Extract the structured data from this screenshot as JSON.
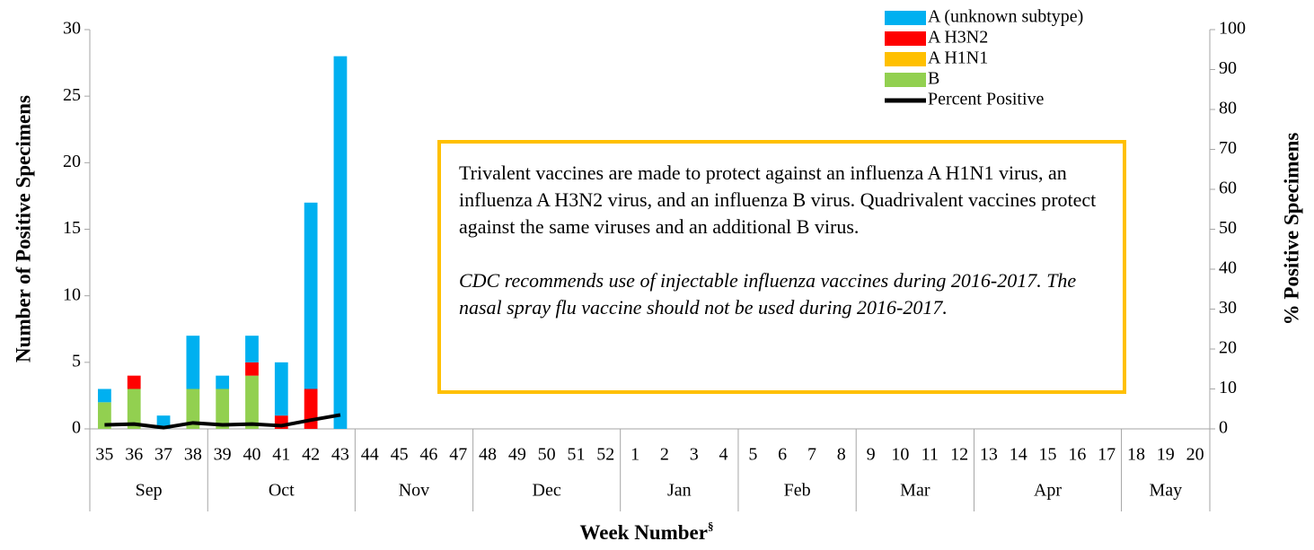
{
  "chart_data": {
    "type": "bar",
    "categories": [
      "35",
      "36",
      "37",
      "38",
      "39",
      "40",
      "41",
      "42",
      "43",
      "44",
      "45",
      "46",
      "47",
      "48",
      "49",
      "50",
      "51",
      "52",
      "1",
      "2",
      "3",
      "4",
      "5",
      "6",
      "7",
      "8",
      "9",
      "10",
      "11",
      "12",
      "13",
      "14",
      "15",
      "16",
      "17",
      "18",
      "19",
      "20"
    ],
    "groups": [
      {
        "label": "Sep",
        "count": 4
      },
      {
        "label": "Oct",
        "count": 5
      },
      {
        "label": "Nov",
        "count": 4
      },
      {
        "label": "Dec",
        "count": 5
      },
      {
        "label": "Jan",
        "count": 4
      },
      {
        "label": "Feb",
        "count": 4
      },
      {
        "label": "Mar",
        "count": 4
      },
      {
        "label": "Apr",
        "count": 5
      },
      {
        "label": "May",
        "count": 3
      }
    ],
    "series": [
      {
        "name": "B",
        "color": "#92d050",
        "values": [
          2,
          3,
          0,
          3,
          3,
          4,
          0,
          0,
          0,
          null,
          null,
          null,
          null,
          null,
          null,
          null,
          null,
          null,
          null,
          null,
          null,
          null,
          null,
          null,
          null,
          null,
          null,
          null,
          null,
          null,
          null,
          null,
          null,
          null,
          null,
          null,
          null,
          null
        ]
      },
      {
        "name": "A H1N1",
        "color": "#ffc000",
        "values": [
          0,
          0,
          0,
          0,
          0,
          0,
          0,
          0,
          0,
          null,
          null,
          null,
          null,
          null,
          null,
          null,
          null,
          null,
          null,
          null,
          null,
          null,
          null,
          null,
          null,
          null,
          null,
          null,
          null,
          null,
          null,
          null,
          null,
          null,
          null,
          null,
          null,
          null
        ]
      },
      {
        "name": "A H3N2",
        "color": "#ff0000",
        "values": [
          0,
          1,
          0,
          0,
          0,
          1,
          1,
          3,
          0,
          null,
          null,
          null,
          null,
          null,
          null,
          null,
          null,
          null,
          null,
          null,
          null,
          null,
          null,
          null,
          null,
          null,
          null,
          null,
          null,
          null,
          null,
          null,
          null,
          null,
          null,
          null,
          null,
          null
        ]
      },
      {
        "name": "A (unknown subtype)",
        "color": "#00b0f0",
        "values": [
          1,
          0,
          1,
          4,
          1,
          2,
          4,
          14,
          28,
          null,
          null,
          null,
          null,
          null,
          null,
          null,
          null,
          null,
          null,
          null,
          null,
          null,
          null,
          null,
          null,
          null,
          null,
          null,
          null,
          null,
          null,
          null,
          null,
          null,
          null,
          null,
          null,
          null
        ]
      },
      {
        "name": "Percent Positive",
        "type": "line",
        "axis": "y2",
        "color": "#000000",
        "values": [
          1,
          1.2,
          0.3,
          1.5,
          1,
          1.2,
          0.8,
          2.2,
          3.5,
          null,
          null,
          null,
          null,
          null,
          null,
          null,
          null,
          null,
          null,
          null,
          null,
          null,
          null,
          null,
          null,
          null,
          null,
          null,
          null,
          null,
          null,
          null,
          null,
          null,
          null,
          null,
          null,
          null
        ]
      }
    ],
    "ylim": [
      0,
      30
    ],
    "yticks": [
      0,
      5,
      10,
      15,
      20,
      25,
      30
    ],
    "y2lim": [
      0,
      100
    ],
    "y2ticks": [
      0,
      10,
      20,
      30,
      40,
      50,
      60,
      70,
      80,
      90,
      100
    ],
    "ylabel": "Number of Positive Specimens",
    "y2label": "% Positive Specimens",
    "xlabel": "Week Number",
    "xlabel_mark": "§",
    "annotations": [
      "Trivalent vaccines are made to protect against an influenza A H1N1 virus, an influenza A H3N2 virus, and an influenza B virus. Quadrivalent vaccines protect against the same viruses and an additional B virus.",
      "CDC recommends use of injectable influenza vaccines during 2016-2017. The nasal spray flu vaccine should not be used during 2016-2017."
    ]
  }
}
